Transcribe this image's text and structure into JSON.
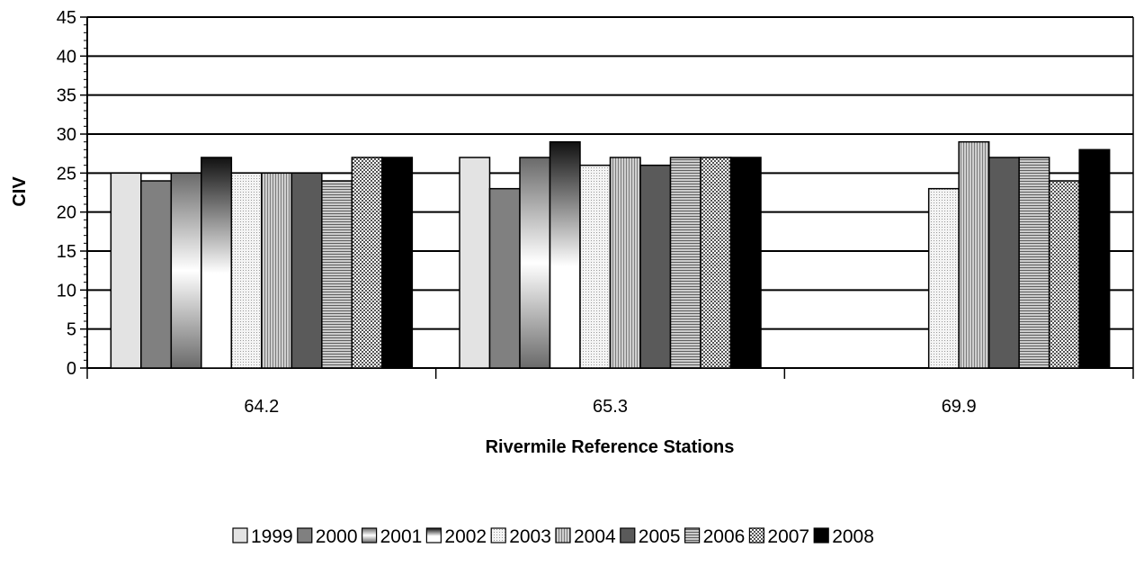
{
  "chart_data": {
    "type": "bar",
    "title": "",
    "xlabel": "Rivermile Reference Stations",
    "ylabel": "CIV",
    "ylim": [
      0,
      45
    ],
    "y_major_step": 5,
    "y_minor_step": 1,
    "grid": true,
    "legend_position": "bottom",
    "categories": [
      "64.2",
      "65.3",
      "69.9"
    ],
    "series": [
      {
        "name": "1999",
        "values": [
          25,
          27,
          null
        ],
        "pattern": "light"
      },
      {
        "name": "2000",
        "values": [
          24,
          23,
          null
        ],
        "pattern": "gray"
      },
      {
        "name": "2001",
        "values": [
          25,
          27,
          null
        ],
        "pattern": "gradient-dark-edges"
      },
      {
        "name": "2002",
        "values": [
          27,
          29,
          null
        ],
        "pattern": "gradient-dark-top"
      },
      {
        "name": "2003",
        "values": [
          25,
          26,
          23
        ],
        "pattern": "fine-dots"
      },
      {
        "name": "2004",
        "values": [
          25,
          27,
          29
        ],
        "pattern": "vertical-lines"
      },
      {
        "name": "2005",
        "values": [
          25,
          26,
          27
        ],
        "pattern": "dark-gray"
      },
      {
        "name": "2006",
        "values": [
          24,
          27,
          27
        ],
        "pattern": "horizontal-lines"
      },
      {
        "name": "2007",
        "values": [
          27,
          27,
          24
        ],
        "pattern": "checker"
      },
      {
        "name": "2008",
        "values": [
          27,
          27,
          28
        ],
        "pattern": "black"
      }
    ]
  }
}
